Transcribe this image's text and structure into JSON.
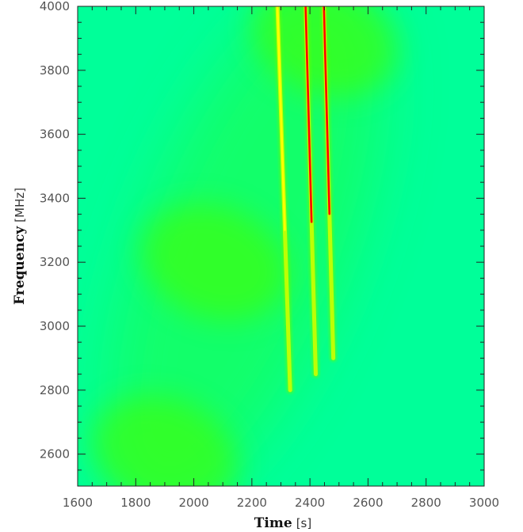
{
  "chart_data": {
    "type": "heatmap",
    "title": "",
    "xlabel": "Time",
    "xunit": "s",
    "ylabel": "Frequency",
    "yunit": "MHz",
    "xlim": [
      1600,
      3000
    ],
    "ylim": [
      2500,
      4000
    ],
    "xticks": [
      1600,
      1800,
      2000,
      2200,
      2400,
      2600,
      2800,
      3000
    ],
    "yticks": [
      2600,
      2800,
      3000,
      3200,
      3400,
      3600,
      3800,
      4000
    ],
    "colormap": [
      "#00ff99",
      "#00ff00",
      "#ffff00",
      "#ff0000"
    ],
    "background_color": "#00ff99",
    "diffuse_emission": {
      "center_track": [
        {
          "time": 1900,
          "frequency": 2600
        },
        {
          "time": 2070,
          "frequency": 3200
        },
        {
          "time": 2450,
          "frequency": 3900
        }
      ],
      "peak_color": "#44ff00"
    },
    "bursts": [
      {
        "time_at_4000MHz": 2288,
        "time_at_2850MHz": 2330,
        "min_frequency": 2800,
        "peak_color": "#ffff00"
      },
      {
        "time_at_4000MHz": 2385,
        "time_at_2850MHz": 2420,
        "min_frequency": 2850,
        "peak_color": "#ff0000"
      },
      {
        "time_at_4000MHz": 2448,
        "time_at_2850MHz": 2482,
        "min_frequency": 2900,
        "peak_color": "#ff0000"
      }
    ]
  }
}
